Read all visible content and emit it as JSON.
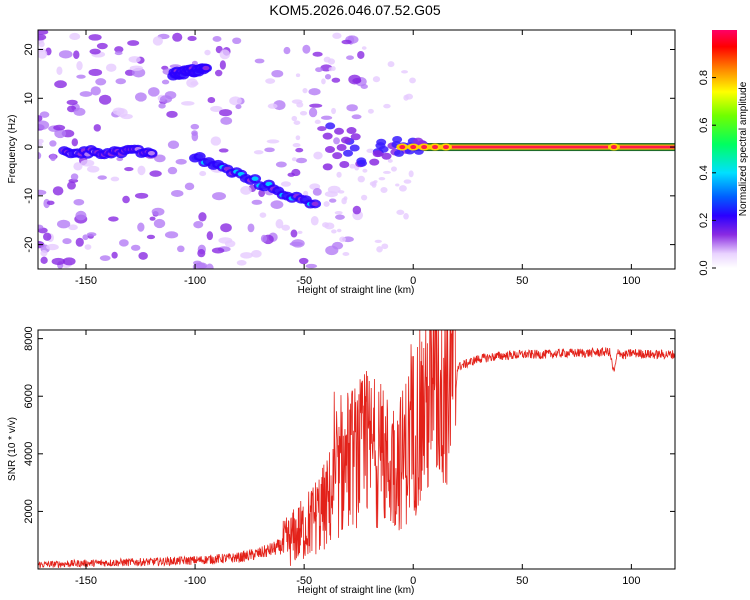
{
  "title": "KOM5.2026.046.07.52.G05",
  "chart_data": [
    {
      "type": "heatmap",
      "xlabel": "Height of straight line (km)",
      "ylabel": "Frequency (Hz)",
      "xlim": [
        -172,
        120
      ],
      "ylim": [
        -25,
        24
      ],
      "xticks": [
        -150,
        -100,
        -50,
        0,
        50,
        100
      ],
      "yticks": [
        -20,
        -10,
        0,
        10,
        20
      ],
      "colorbar": {
        "label": "Normalized spectral amplitude",
        "range": [
          0,
          1
        ],
        "ticks": [
          "0.0",
          "0.2",
          "0.4",
          "0.6",
          "0.8"
        ]
      },
      "features": [
        {
          "name": "carrier",
          "x": [
            0,
            120
          ],
          "y": [
            0,
            0
          ],
          "amplitude": 1.0
        },
        {
          "name": "upper branch",
          "x": [
            -110,
            -95
          ],
          "y": [
            15,
            16
          ],
          "amplitude": 0.35
        },
        {
          "name": "descending branch",
          "x": [
            -100,
            -45
          ],
          "y": [
            -2,
            -12
          ],
          "amplitude": 0.45
        },
        {
          "name": "low branch",
          "x": [
            -160,
            -120
          ],
          "y": [
            -1,
            -1
          ],
          "amplitude": 0.3
        }
      ]
    },
    {
      "type": "line",
      "xlabel": "Height of straight line (km)",
      "ylabel": "SNR (10 * v/v)",
      "xlim": [
        -172,
        120
      ],
      "ylim": [
        0,
        8300
      ],
      "xticks": [
        -150,
        -100,
        -50,
        0,
        50,
        100
      ],
      "yticks": [
        2000,
        4000,
        6000,
        8000
      ],
      "color": "#e32119",
      "series": [
        {
          "x": [
            -172,
            -150,
            -120,
            -100,
            -80,
            -70,
            -60,
            -50,
            -40,
            -35,
            -30,
            -25,
            -20,
            -15,
            -10,
            -5,
            0,
            5,
            10,
            15,
            20,
            30,
            40,
            50,
            60,
            70,
            80,
            90,
            92,
            94,
            96,
            100,
            110,
            120
          ],
          "y": [
            150,
            200,
            250,
            300,
            400,
            550,
            800,
            1400,
            2200,
            3000,
            3800,
            4000,
            4200,
            3900,
            3600,
            3800,
            4800,
            5600,
            6200,
            6700,
            7000,
            7300,
            7400,
            7450,
            7450,
            7500,
            7500,
            7550,
            6800,
            7600,
            7400,
            7500,
            7450,
            7450
          ]
        }
      ]
    }
  ]
}
